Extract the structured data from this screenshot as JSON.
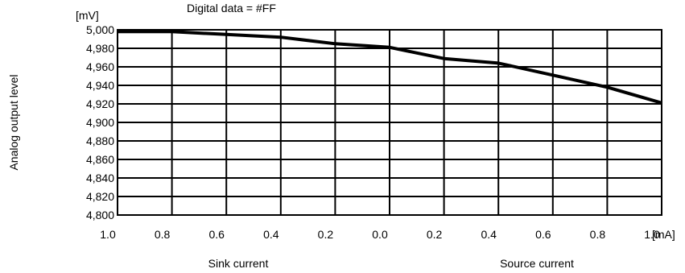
{
  "chart_data": {
    "type": "line",
    "title": "Digital data = #FF",
    "ylabel": "Analog output level",
    "y_unit": "[mV]",
    "x_unit": "[mA]",
    "x_group_labels": [
      "Sink current",
      "Source current"
    ],
    "ylim": [
      4800,
      5000
    ],
    "y_ticks": [
      5000,
      4980,
      4960,
      4940,
      4920,
      4900,
      4880,
      4860,
      4840,
      4820,
      4800
    ],
    "y_tick_labels": [
      "5,000",
      "4,980",
      "4,960",
      "4,940",
      "4,920",
      "4,900",
      "4,880",
      "4,860",
      "4,840",
      "4,820",
      "4,800"
    ],
    "x_tick_labels": [
      "1.0",
      "0.8",
      "0.6",
      "0.4",
      "0.2",
      "0.0",
      "0.2",
      "0.4",
      "0.6",
      "0.8",
      "1.0"
    ],
    "grid": true,
    "series": [
      {
        "x": [
          -1.0,
          -0.8,
          -0.6,
          -0.4,
          -0.2,
          0.0,
          0.2,
          0.4,
          0.6,
          0.8,
          1.0
        ],
        "values": [
          4998,
          4998,
          4995,
          4992,
          4985,
          4981,
          4969,
          4964,
          4951,
          4938,
          4921
        ]
      }
    ]
  }
}
